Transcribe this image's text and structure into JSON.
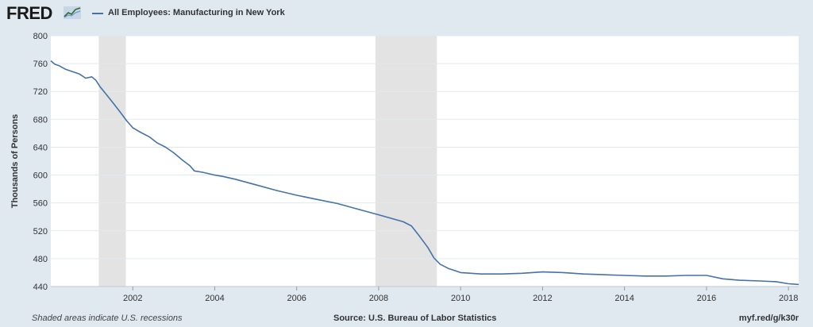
{
  "header": {
    "logo_text": "FRED",
    "logo_icon": "chart-line-icon",
    "series_label": "All Employees: Manufacturing in New York"
  },
  "footer": {
    "note": "Shaded areas indicate U.S. recessions",
    "source": "Source: U.S. Bureau of Labor Statistics",
    "url": "myf.red/g/k30r"
  },
  "colors": {
    "line": "#4572a7",
    "recession": "#e3e3e3",
    "plot_bg": "#ffffff",
    "page_bg": "#e1e9f0",
    "grid": "#e1e9f0"
  },
  "chart_data": {
    "type": "line",
    "ylabel": "Thousands of Persons",
    "xlim": [
      2000.0,
      2018.25
    ],
    "ylim": [
      440,
      800
    ],
    "yticks": [
      440,
      480,
      520,
      560,
      600,
      640,
      680,
      720,
      760,
      800
    ],
    "xticks": [
      2002,
      2004,
      2006,
      2008,
      2010,
      2012,
      2014,
      2016,
      2018
    ],
    "grid": true,
    "recessions": [
      [
        2001.17,
        2001.83
      ],
      [
        2007.92,
        2009.42
      ]
    ],
    "series": [
      {
        "name": "All Employees: Manufacturing in New York",
        "x": [
          2000.0,
          2000.1,
          2000.2,
          2000.35,
          2000.5,
          2000.7,
          2000.85,
          2001.0,
          2001.1,
          2001.2,
          2001.35,
          2001.5,
          2001.7,
          2001.85,
          2002.0,
          2002.2,
          2002.4,
          2002.6,
          2002.8,
          2003.0,
          2003.2,
          2003.4,
          2003.5,
          2003.7,
          2004.0,
          2004.2,
          2004.5,
          2005.0,
          2005.5,
          2006.0,
          2006.5,
          2007.0,
          2007.5,
          2008.0,
          2008.3,
          2008.6,
          2008.8,
          2009.0,
          2009.2,
          2009.35,
          2009.5,
          2009.7,
          2010.0,
          2010.5,
          2011.0,
          2011.5,
          2012.0,
          2012.5,
          2013.0,
          2013.5,
          2014.0,
          2014.5,
          2015.0,
          2015.5,
          2016.0,
          2016.4,
          2016.8,
          2017.3,
          2017.7,
          2018.0,
          2018.25
        ],
        "values": [
          764,
          759,
          757,
          752,
          749,
          745,
          739,
          741,
          736,
          727,
          716,
          705,
          690,
          678,
          668,
          661,
          655,
          646,
          640,
          632,
          622,
          613,
          606,
          604,
          600,
          598,
          594,
          586,
          578,
          571,
          565,
          559,
          551,
          543,
          538,
          533,
          527,
          512,
          496,
          481,
          472,
          466,
          460,
          458,
          458,
          459,
          461,
          460,
          458,
          457,
          456,
          455,
          455,
          456,
          456,
          451,
          449,
          448,
          447,
          444,
          443
        ]
      }
    ]
  }
}
